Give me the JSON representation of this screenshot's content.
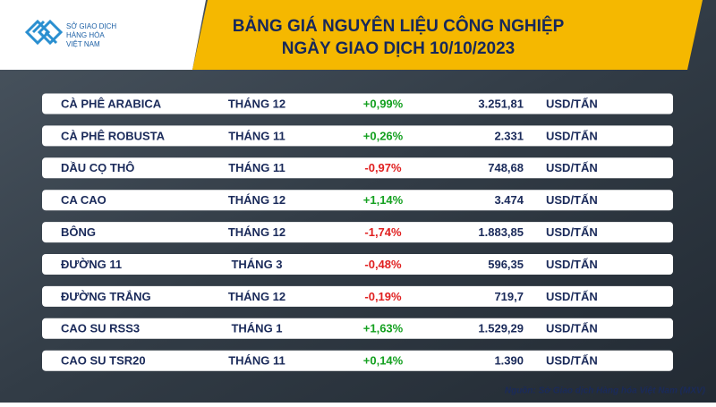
{
  "header": {
    "logo": [
      "SỞ GIAO DỊCH",
      "HÀNG HÓA",
      "VIỆT NAM"
    ],
    "title": [
      "BẢNG GIÁ NGUYÊN LIỆU CÔNG NGHIỆP",
      "NGÀY GIAO DỊCH 10/10/2023"
    ]
  },
  "table": {
    "rows": [
      [
        "CÀ PHÊ ARABICA",
        "THÁNG 12",
        "+0,99%",
        "3.251,81",
        "USD/TẤN"
      ],
      [
        "CÀ PHÊ ROBUSTA",
        "THÁNG 11",
        "+0,26%",
        "2.331",
        "USD/TẤN"
      ],
      [
        "DẦU CỌ THÔ",
        "THÁNG 11",
        "-0,97%",
        "748,68",
        "USD/TẤN"
      ],
      [
        "CA CAO",
        "THÁNG 12",
        "+1,14%",
        "3.474",
        "USD/TẤN"
      ],
      [
        "BÔNG",
        "THÁNG 12",
        "-1,74%",
        "1.883,85",
        "USD/TẤN"
      ],
      [
        "ĐƯỜNG 11",
        "THÁNG 3",
        "-0,48%",
        "596,35",
        "USD/TẤN"
      ],
      [
        "ĐƯỜNG TRẮNG",
        "THÁNG 12",
        "-0,19%",
        "719,7",
        "USD/TẤN"
      ],
      [
        "CAO SU RSS3",
        "THÁNG 1",
        "+1,63%",
        "1.529,29",
        "USD/TẤN"
      ],
      [
        "CAO SU TSR20",
        "THÁNG 11",
        "+0,14%",
        "1.390",
        "USD/TẤN"
      ]
    ]
  },
  "footer": {
    "source": "Nguồn: Sở Giao dịch Hàng hóa Việt Nam (MXV)"
  }
}
